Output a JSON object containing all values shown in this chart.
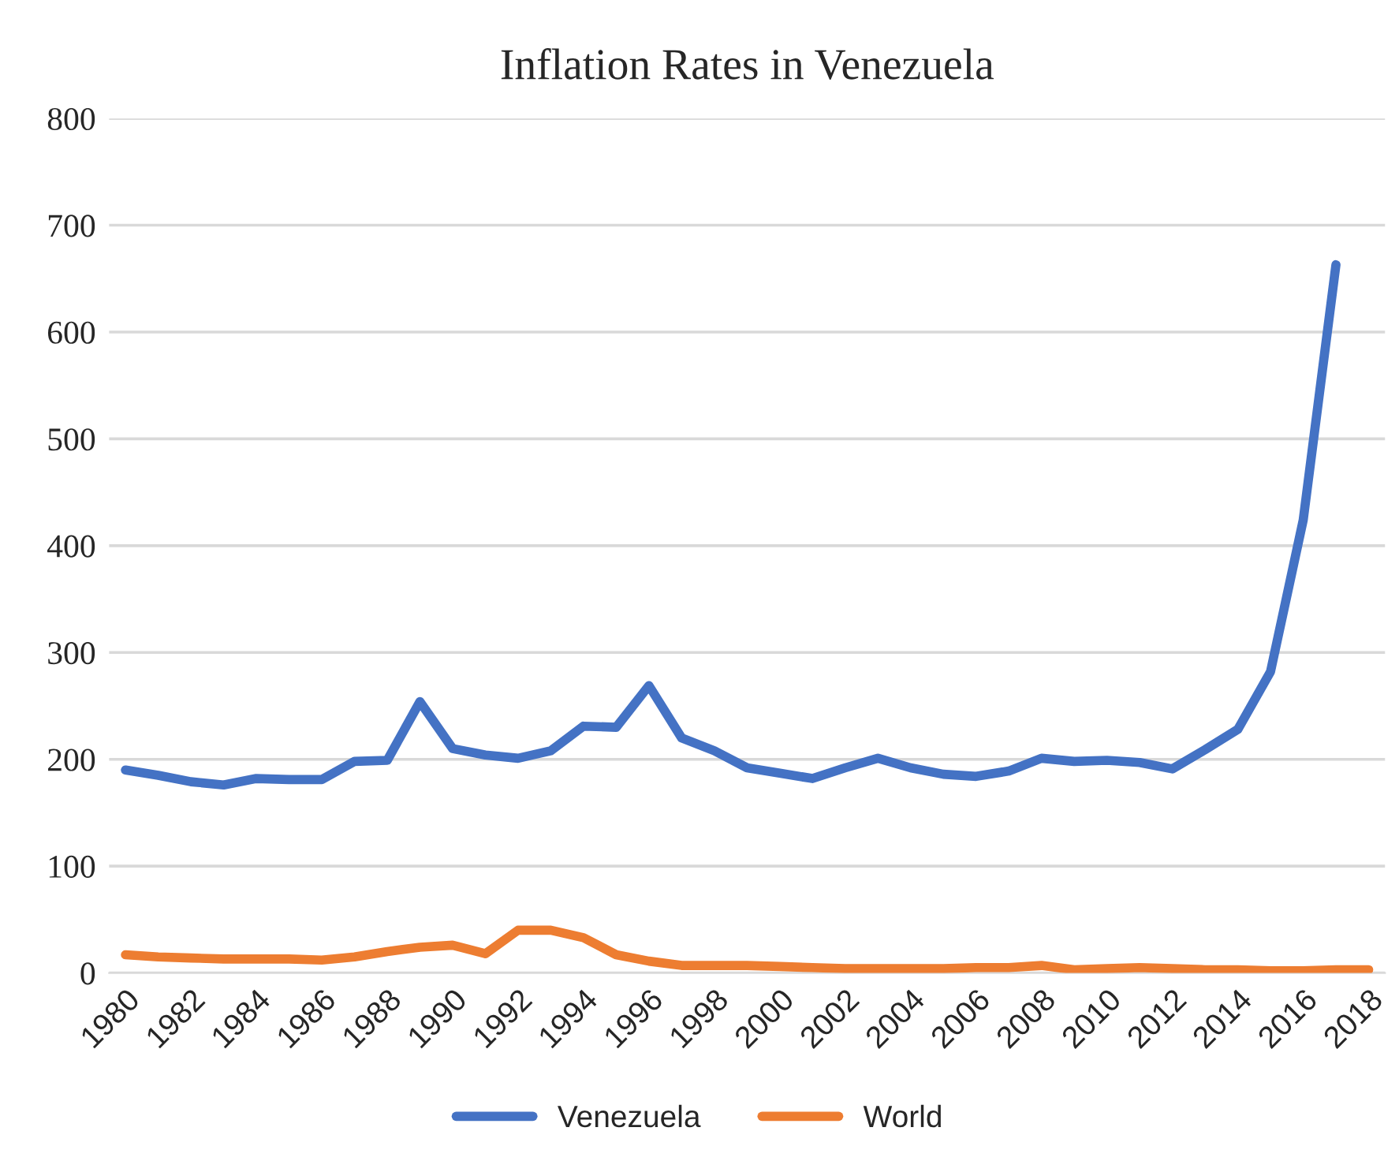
{
  "chart_data": {
    "type": "line",
    "title": "Inflation Rates in Venezuela",
    "categories": [
      "1980",
      null,
      "1982",
      null,
      "1984",
      null,
      "1986",
      null,
      "1988",
      null,
      "1990",
      null,
      "1992",
      null,
      "1994",
      null,
      "1996",
      null,
      "1998",
      null,
      "2000",
      null,
      "2002",
      null,
      "2004",
      null,
      "2006",
      null,
      "2008",
      null,
      "2010",
      null,
      "2012",
      null,
      "2014",
      null,
      "2016",
      null,
      "2018"
    ],
    "series": [
      {
        "name": "Venezuela",
        "color": "#4472c4",
        "values": [
          190,
          185,
          179,
          176,
          182,
          181,
          181,
          198,
          199,
          254,
          210,
          204,
          201,
          208,
          231,
          230,
          269,
          220,
          208,
          192,
          187,
          182,
          192,
          201,
          192,
          186,
          184,
          189,
          201,
          198,
          199,
          197,
          191,
          209,
          228,
          282,
          424,
          663,
          null
        ]
      },
      {
        "name": "World",
        "color": "#ed7d31",
        "values": [
          17,
          15,
          14,
          13,
          13,
          13,
          12,
          15,
          20,
          24,
          26,
          18,
          40,
          40,
          33,
          17,
          11,
          7,
          7,
          7,
          6,
          5,
          4,
          4,
          4,
          4,
          5,
          5,
          7,
          3,
          4,
          5,
          4,
          3,
          3,
          2,
          2,
          3,
          3
        ]
      }
    ],
    "ylim": [
      0,
      800
    ],
    "yticks": [
      0,
      100,
      200,
      300,
      400,
      500,
      600,
      700,
      800
    ],
    "grid": "y",
    "legend": "bottom",
    "line_style": "solid"
  }
}
